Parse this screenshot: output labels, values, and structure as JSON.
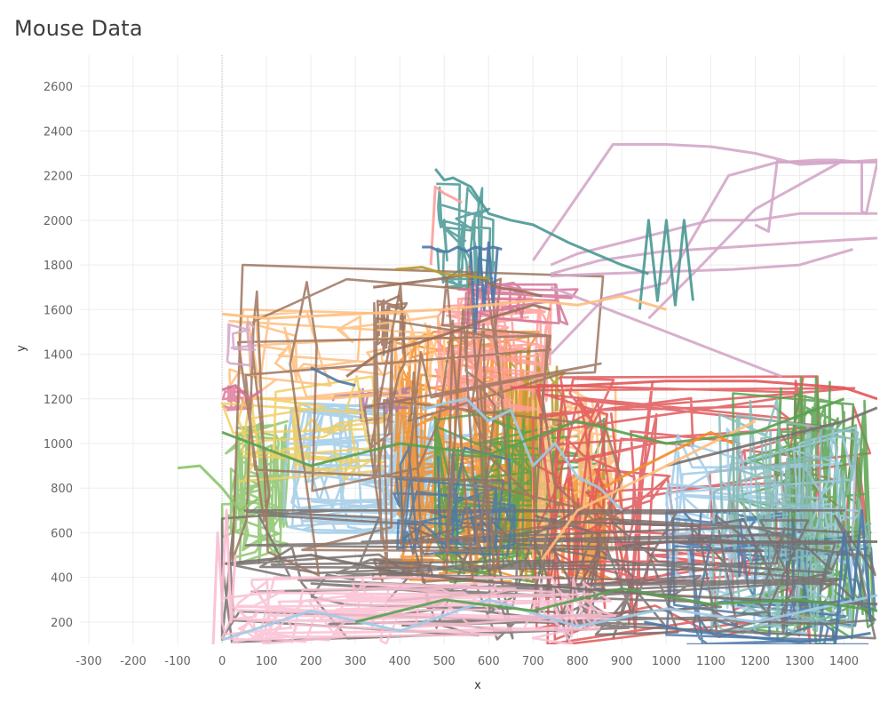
{
  "title": "Mouse Data",
  "chart_data": {
    "type": "line",
    "title": "Mouse Data",
    "xlabel": "x",
    "ylabel": "y",
    "xlim": [
      -320,
      1475
    ],
    "ylim": [
      100,
      2740
    ],
    "x_ticks": [
      -300,
      -200,
      -100,
      0,
      100,
      200,
      300,
      400,
      500,
      600,
      700,
      800,
      900,
      1000,
      1100,
      1200,
      1300,
      1400
    ],
    "y_ticks": [
      200,
      400,
      600,
      800,
      1000,
      1200,
      1400,
      1600,
      1800,
      2000,
      2200,
      2400,
      2600
    ],
    "grid": true,
    "legend": "none",
    "blobs": [
      {
        "color": "#8cc46d",
        "x0": 0,
        "x1": 150,
        "y0": 460,
        "y1": 1100,
        "points": 120
      },
      {
        "color": "#e07a9a",
        "x0": 0,
        "x1": 70,
        "y0": 1150,
        "y1": 1260,
        "points": 40
      },
      {
        "color": "#9a7059",
        "x0": 340,
        "x1": 480,
        "y0": 380,
        "y1": 480,
        "points": 50
      },
      {
        "color": "#9a7059",
        "x0": 350,
        "x1": 420,
        "y0": 1380,
        "y1": 1660,
        "points": 40
      },
      {
        "color": "#a0cbe8",
        "x0": 140,
        "x1": 640,
        "y0": 600,
        "y1": 1180,
        "points": 200
      },
      {
        "color": "#f28e2b",
        "x0": 390,
        "x1": 720,
        "y0": 380,
        "y1": 1500,
        "points": 260
      },
      {
        "color": "#b6992d",
        "x0": 600,
        "x1": 780,
        "y0": 400,
        "y1": 1440,
        "points": 90
      },
      {
        "color": "#ff9d9a",
        "x0": 480,
        "x1": 740,
        "y0": 1150,
        "y1": 1650,
        "points": 120
      },
      {
        "color": "#59a14f",
        "x0": 480,
        "x1": 860,
        "y0": 380,
        "y1": 1150,
        "points": 120
      },
      {
        "color": "#499894",
        "x0": 470,
        "x1": 620,
        "y0": 1700,
        "y1": 2200,
        "points": 60
      },
      {
        "color": "#f28e2b",
        "x0": 760,
        "x1": 880,
        "y0": 380,
        "y1": 880,
        "points": 90
      },
      {
        "color": "#ffbe7d",
        "x0": 700,
        "x1": 900,
        "y0": 400,
        "y1": 1250,
        "points": 100
      },
      {
        "color": "#e15759",
        "x0": 700,
        "x1": 1460,
        "y0": 100,
        "y1": 1300,
        "points": 160
      },
      {
        "color": "#59a14f",
        "x0": 1150,
        "x1": 1470,
        "y0": 100,
        "y1": 1300,
        "points": 160
      },
      {
        "color": "#a0cbe8",
        "x0": 1000,
        "x1": 1470,
        "y0": 150,
        "y1": 1100,
        "points": 120
      },
      {
        "color": "#4e79a7",
        "x0": 1000,
        "x1": 1470,
        "y0": 100,
        "y1": 700,
        "points": 80
      },
      {
        "color": "#86bcb6",
        "x0": 1100,
        "x1": 1470,
        "y0": 150,
        "y1": 1200,
        "points": 90
      },
      {
        "color": "#79706e",
        "x0": 0,
        "x1": 1470,
        "y0": 110,
        "y1": 700,
        "points": 160
      },
      {
        "color": "#fabfd2",
        "x0": 0,
        "x1": 900,
        "y0": 100,
        "y1": 400,
        "points": 140
      },
      {
        "color": "#b07aa1",
        "x0": 250,
        "x1": 450,
        "y0": 1100,
        "y1": 1260,
        "points": 40
      },
      {
        "color": "#ffbe7d",
        "x0": 0,
        "x1": 500,
        "y0": 1200,
        "y1": 1600,
        "points": 70
      },
      {
        "color": "#4e79a7",
        "x0": 380,
        "x1": 660,
        "y0": 500,
        "y1": 1000,
        "points": 60
      },
      {
        "color": "#f1ce63",
        "x0": 0,
        "x1": 400,
        "y0": 800,
        "y1": 1300,
        "points": 60
      },
      {
        "color": "#9d7660",
        "x0": 0,
        "x1": 900,
        "y0": 380,
        "y1": 1800,
        "points": 80
      },
      {
        "color": "#d37295",
        "x0": 500,
        "x1": 800,
        "y0": 1500,
        "y1": 1720,
        "points": 50
      },
      {
        "color": "#d4a6c8",
        "x0": 0,
        "x1": 80,
        "y0": 1350,
        "y1": 1550,
        "points": 20
      }
    ],
    "series": [
      {
        "color": "#d4a6c8",
        "x": [
          740,
          800,
          900,
          1000,
          1100,
          1200,
          1300,
          1400,
          1475
        ],
        "y": [
          1800,
          1850,
          1900,
          1950,
          2000,
          2000,
          2030,
          2030,
          2030
        ]
      },
      {
        "color": "#d4a6c8",
        "x": [
          740,
          850,
          990,
          1150,
          1300,
          1475
        ],
        "y": [
          1760,
          1820,
          1860,
          1880,
          1900,
          1920
        ]
      },
      {
        "color": "#d4a6c8",
        "x": [
          700,
          880,
          1000,
          1100,
          1200,
          1300,
          1400,
          1475,
          1475,
          1450,
          1440,
          1440,
          1380,
          1340,
          1260,
          1250,
          1230,
          1200
        ],
        "y": [
          1820,
          2340,
          2340,
          2330,
          2300,
          2250,
          2260,
          2270,
          2260,
          2030,
          2040,
          2260,
          2270,
          2270,
          2260,
          2270,
          1950,
          1980
        ]
      },
      {
        "color": "#d4a6c8",
        "x": [
          740,
          860,
          1000,
          1140,
          1250,
          1400,
          1475
        ],
        "y": [
          1400,
          1650,
          1720,
          2200,
          2260,
          2260,
          2260
        ]
      },
      {
        "color": "#d4a6c8",
        "x": [
          740,
          850,
          1000,
          1150,
          1300,
          1420
        ],
        "y": [
          1750,
          1760,
          1770,
          1780,
          1800,
          1870
        ]
      },
      {
        "color": "#d4a6c8",
        "x": [
          740,
          1000,
          1260
        ],
        "y": [
          1700,
          1500,
          1300
        ]
      },
      {
        "color": "#d4a6c8",
        "x": [
          960,
          1080,
          1200,
          1400
        ],
        "y": [
          1560,
          1800,
          2050,
          2270
        ]
      },
      {
        "color": "#499894",
        "x": [
          480,
          500,
          520,
          560,
          600,
          650,
          700,
          780,
          900,
          960
        ],
        "y": [
          2230,
          2180,
          2190,
          2150,
          2030,
          2000,
          1980,
          1900,
          1800,
          1760
        ]
      },
      {
        "color": "#499894",
        "x": [
          940,
          960,
          980,
          1000,
          1020,
          1040,
          1060
        ],
        "y": [
          1600,
          2000,
          1640,
          2000,
          1620,
          2000,
          1640
        ]
      },
      {
        "color": "#ff9d9a",
        "x": [
          470,
          480,
          500,
          520,
          540
        ],
        "y": [
          1800,
          2150,
          2120,
          2100,
          2080
        ]
      },
      {
        "color": "#79706e",
        "x": [
          900,
          1000,
          1100,
          1200,
          1300,
          1400,
          1475
        ],
        "y": [
          540,
          560,
          560,
          560,
          560,
          560,
          560
        ]
      },
      {
        "color": "#79706e",
        "x": [
          1000,
          1200,
          1400,
          1475
        ],
        "y": [
          900,
          1000,
          1100,
          1160
        ]
      },
      {
        "color": "#79706e",
        "x": [
          0,
          200,
          400,
          600,
          800,
          1000,
          1200,
          1475
        ],
        "y": [
          460,
          500,
          420,
          380,
          350,
          320,
          300,
          280
        ]
      },
      {
        "color": "#4e79a7",
        "x": [
          450,
          470,
          490,
          510,
          530,
          550,
          570,
          590,
          610,
          630
        ],
        "y": [
          1880,
          1880,
          1860,
          1860,
          1880,
          1860,
          1880,
          1870,
          1880,
          1870
        ]
      },
      {
        "color": "#4e79a7",
        "x": [
          560,
          570,
          580,
          590,
          600,
          610,
          620
        ],
        "y": [
          1860,
          1500,
          1880,
          1600,
          1900,
          1620,
          1880
        ]
      },
      {
        "color": "#4e79a7",
        "x": [
          200,
          260,
          300
        ],
        "y": [
          1340,
          1280,
          1260
        ]
      },
      {
        "color": "#4e79a7",
        "x": [
          950,
          1000,
          1050,
          1100,
          1150,
          1200,
          1250,
          1300,
          1350,
          1400,
          1460
        ],
        "y": [
          200,
          180,
          160,
          150,
          140,
          130,
          120,
          110,
          120,
          130,
          150
        ]
      },
      {
        "color": "#9a7059",
        "x": [
          340,
          420,
          500,
          560,
          620,
          680,
          720
        ],
        "y": [
          1700,
          1720,
          1740,
          1760,
          1700,
          1680,
          1660
        ]
      },
      {
        "color": "#9a7059",
        "x": [
          280,
          350,
          440,
          520,
          600,
          700,
          740
        ],
        "y": [
          1300,
          1400,
          1450,
          1500,
          1560,
          1620,
          1600
        ]
      },
      {
        "color": "#a0cbe8",
        "x": [
          0,
          200,
          400,
          600,
          800,
          1000,
          1200,
          1475
        ],
        "y": [
          120,
          250,
          160,
          300,
          180,
          260,
          200,
          320
        ]
      },
      {
        "color": "#a0cbe8",
        "x": [
          450,
          500,
          550,
          600,
          650,
          700,
          750,
          800,
          850,
          900
        ],
        "y": [
          1150,
          1180,
          1200,
          1100,
          1150,
          900,
          1000,
          850,
          800,
          700
        ]
      },
      {
        "color": "#ffbe7d",
        "x": [
          720,
          800,
          900,
          1000,
          1100,
          1200
        ],
        "y": [
          480,
          700,
          800,
          900,
          1000,
          1100
        ]
      },
      {
        "color": "#ffbe7d",
        "x": [
          0,
          100,
          200,
          300,
          400,
          500,
          600,
          700,
          800,
          900,
          1000
        ],
        "y": [
          1580,
          1560,
          1570,
          1580,
          1590,
          1600,
          1620,
          1640,
          1620,
          1660,
          1600
        ]
      },
      {
        "color": "#e15759",
        "x": [
          650,
          800,
          1000,
          1200,
          1400,
          1475
        ],
        "y": [
          1250,
          1260,
          1280,
          1280,
          1250,
          1200
        ]
      },
      {
        "color": "#59a14f",
        "x": [
          0,
          200,
          400,
          600,
          800,
          1000,
          1200,
          1400
        ],
        "y": [
          1050,
          900,
          1000,
          950,
          1100,
          1000,
          1050,
          1200
        ]
      },
      {
        "color": "#59a14f",
        "x": [
          300,
          500,
          700,
          900,
          1100,
          1300,
          1475
        ],
        "y": [
          200,
          300,
          250,
          350,
          280,
          300,
          250
        ]
      },
      {
        "color": "#f28e2b",
        "x": [
          860,
          900,
          950,
          1000,
          1050,
          1100,
          1150
        ],
        "y": [
          800,
          850,
          900,
          950,
          1000,
          1050,
          1000
        ]
      },
      {
        "color": "#8cc46d",
        "x": [
          -100,
          -50,
          0,
          40,
          80
        ],
        "y": [
          890,
          900,
          800,
          700,
          750
        ]
      },
      {
        "color": "#b6992d",
        "x": [
          390,
          450,
          500,
          550,
          600
        ],
        "y": [
          1780,
          1790,
          1760,
          1750,
          1740
        ]
      },
      {
        "color": "#fabfd2",
        "x": [
          -20,
          -10,
          0,
          10,
          20,
          30
        ],
        "y": [
          100,
          600,
          300,
          700,
          200,
          500
        ]
      },
      {
        "color": "#d37295",
        "x": [
          0,
          30,
          60,
          90
        ],
        "y": [
          1240,
          1260,
          1200,
          1240
        ]
      },
      {
        "color": "#4e79a7",
        "x": [
          1380,
          1400,
          1420,
          1440,
          1460
        ],
        "y": [
          100,
          600,
          300,
          700,
          200
        ]
      }
    ]
  }
}
